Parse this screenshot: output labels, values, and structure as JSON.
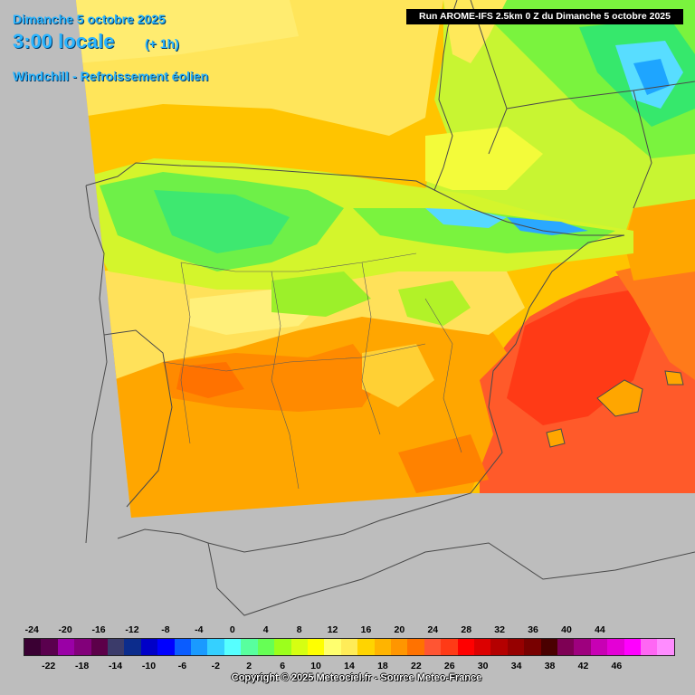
{
  "header": {
    "date": "Dimanche 5 octobre 2025",
    "time": "3:00 locale",
    "offset": "(+ 1h)",
    "parameter": "Windchill - Refroissement éolien",
    "run_info": "Run AROME-IFS 2.5km 0 Z du Dimanche 5 octobre 2025"
  },
  "colors": {
    "background_outside_domain": "#bdbdbd",
    "title": "#2ab4ff",
    "border_lines": "#4a4a4a",
    "sea_north": "#ffc400",
    "sea_mediterranean": "#ff5a2a",
    "mountains": "#5ee83c",
    "plateau": "#ffe860",
    "south_plains": "#ffa600"
  },
  "legend": {
    "top_labels": [
      "-24",
      "-20",
      "-16",
      "-12",
      "-8",
      "-4",
      "0",
      "4",
      "8",
      "12",
      "16",
      "20",
      "24",
      "28",
      "32",
      "36",
      "40",
      "44"
    ],
    "bottom_labels": [
      "-22",
      "-18",
      "-14",
      "-10",
      "-6",
      "-2",
      "2",
      "6",
      "10",
      "14",
      "18",
      "22",
      "26",
      "30",
      "34",
      "38",
      "42",
      "46"
    ],
    "colors": [
      "#3a0033",
      "#5a004e",
      "#9a00a6",
      "#82007a",
      "#5c0049",
      "#3b3b6a",
      "#0c2c8c",
      "#0000c8",
      "#0000ff",
      "#0a5cff",
      "#1a9aff",
      "#35d0ff",
      "#56ffff",
      "#58ff9e",
      "#66ff55",
      "#9cff1c",
      "#d6ff12",
      "#ffff00",
      "#ffff6e",
      "#ffec58",
      "#ffd400",
      "#ffb400",
      "#ff9600",
      "#ff7200",
      "#ff5533",
      "#ff3a16",
      "#ff0000",
      "#dc0000",
      "#b40000",
      "#960000",
      "#780000",
      "#4a0000",
      "#7e0054",
      "#9e007e",
      "#c800b4",
      "#e400d6",
      "#ff00ff",
      "#ff66f4",
      "#ff8cff"
    ]
  },
  "footer": {
    "copyright": "Copyright © 2025 Meteociel.fr - Source Meteo-France"
  }
}
